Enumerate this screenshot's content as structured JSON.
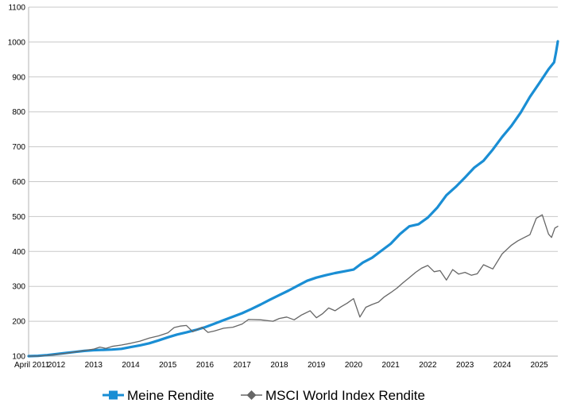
{
  "chart_data": {
    "type": "line",
    "title": "",
    "xlabel": "",
    "ylabel": "",
    "ylim": [
      100,
      1100
    ],
    "yticks": [
      100,
      200,
      300,
      400,
      500,
      600,
      700,
      800,
      900,
      1000,
      1100
    ],
    "xlim": [
      2011.25,
      2025.5
    ],
    "xtick_labels": [
      {
        "x": 2011.25,
        "label": "April 2011"
      },
      {
        "x": 2012.0,
        "label": "2012"
      },
      {
        "x": 2013.0,
        "label": "2013"
      },
      {
        "x": 2014.0,
        "label": "2014"
      },
      {
        "x": 2015.0,
        "label": "2015"
      },
      {
        "x": 2016.0,
        "label": "2016"
      },
      {
        "x": 2017.0,
        "label": "2017"
      },
      {
        "x": 2018.0,
        "label": "2018"
      },
      {
        "x": 2019.0,
        "label": "2019"
      },
      {
        "x": 2020.0,
        "label": "2020"
      },
      {
        "x": 2021.0,
        "label": "2021"
      },
      {
        "x": 2022.0,
        "label": "2022"
      },
      {
        "x": 2023.0,
        "label": "2023"
      },
      {
        "x": 2024.0,
        "label": "2024"
      },
      {
        "x": 2025.0,
        "label": "2025"
      }
    ],
    "grid": {
      "horizontal": true,
      "vertical": false
    },
    "legend": "bottom",
    "series": [
      {
        "name": "Meine Rendite",
        "color": "#1a8ed4",
        "marker": "square",
        "points": [
          [
            2011.25,
            100
          ],
          [
            2011.5,
            101
          ],
          [
            2011.75,
            103
          ],
          [
            2012.0,
            106
          ],
          [
            2012.25,
            109
          ],
          [
            2012.5,
            112
          ],
          [
            2012.75,
            115
          ],
          [
            2013.0,
            117
          ],
          [
            2013.25,
            118
          ],
          [
            2013.5,
            119
          ],
          [
            2013.75,
            121
          ],
          [
            2014.0,
            126
          ],
          [
            2014.25,
            131
          ],
          [
            2014.5,
            137
          ],
          [
            2014.75,
            145
          ],
          [
            2015.0,
            154
          ],
          [
            2015.25,
            162
          ],
          [
            2015.5,
            168
          ],
          [
            2015.75,
            175
          ],
          [
            2016.0,
            183
          ],
          [
            2016.25,
            193
          ],
          [
            2016.5,
            203
          ],
          [
            2016.75,
            213
          ],
          [
            2017.0,
            223
          ],
          [
            2017.25,
            235
          ],
          [
            2017.5,
            248
          ],
          [
            2017.75,
            262
          ],
          [
            2018.0,
            275
          ],
          [
            2018.25,
            288
          ],
          [
            2018.5,
            302
          ],
          [
            2018.75,
            316
          ],
          [
            2019.0,
            325
          ],
          [
            2019.25,
            332
          ],
          [
            2019.5,
            338
          ],
          [
            2019.75,
            343
          ],
          [
            2020.0,
            348
          ],
          [
            2020.25,
            368
          ],
          [
            2020.5,
            382
          ],
          [
            2020.75,
            402
          ],
          [
            2021.0,
            422
          ],
          [
            2021.25,
            450
          ],
          [
            2021.5,
            472
          ],
          [
            2021.75,
            478
          ],
          [
            2022.0,
            497
          ],
          [
            2022.25,
            525
          ],
          [
            2022.5,
            561
          ],
          [
            2022.75,
            585
          ],
          [
            2023.0,
            612
          ],
          [
            2023.25,
            640
          ],
          [
            2023.5,
            660
          ],
          [
            2023.75,
            692
          ],
          [
            2024.0,
            728
          ],
          [
            2024.25,
            760
          ],
          [
            2024.5,
            798
          ],
          [
            2024.75,
            843
          ],
          [
            2025.0,
            882
          ],
          [
            2025.25,
            922
          ],
          [
            2025.4,
            942
          ],
          [
            2025.45,
            970
          ],
          [
            2025.5,
            1002
          ]
        ]
      },
      {
        "name": "MSCI World Index Rendite",
        "color": "#666666",
        "marker": "diamond",
        "points": [
          [
            2011.25,
            100
          ],
          [
            2011.5,
            100
          ],
          [
            2011.75,
            102
          ],
          [
            2012.0,
            105
          ],
          [
            2012.25,
            108
          ],
          [
            2012.5,
            112
          ],
          [
            2012.75,
            116
          ],
          [
            2013.0,
            120
          ],
          [
            2013.17,
            126
          ],
          [
            2013.33,
            122
          ],
          [
            2013.5,
            128
          ],
          [
            2013.75,
            132
          ],
          [
            2014.0,
            137
          ],
          [
            2014.25,
            143
          ],
          [
            2014.5,
            152
          ],
          [
            2014.75,
            158
          ],
          [
            2015.0,
            167
          ],
          [
            2015.17,
            182
          ],
          [
            2015.33,
            186
          ],
          [
            2015.5,
            188
          ],
          [
            2015.67,
            170
          ],
          [
            2015.92,
            183
          ],
          [
            2016.08,
            168
          ],
          [
            2016.25,
            172
          ],
          [
            2016.5,
            180
          ],
          [
            2016.75,
            183
          ],
          [
            2017.0,
            192
          ],
          [
            2017.17,
            205
          ],
          [
            2017.5,
            204
          ],
          [
            2017.83,
            200
          ],
          [
            2018.0,
            208
          ],
          [
            2018.2,
            212
          ],
          [
            2018.4,
            204
          ],
          [
            2018.6,
            218
          ],
          [
            2018.83,
            230
          ],
          [
            2019.0,
            210
          ],
          [
            2019.17,
            222
          ],
          [
            2019.33,
            238
          ],
          [
            2019.5,
            230
          ],
          [
            2019.67,
            242
          ],
          [
            2019.83,
            252
          ],
          [
            2020.0,
            265
          ],
          [
            2020.17,
            212
          ],
          [
            2020.33,
            240
          ],
          [
            2020.5,
            248
          ],
          [
            2020.67,
            255
          ],
          [
            2020.83,
            270
          ],
          [
            2021.0,
            282
          ],
          [
            2021.17,
            295
          ],
          [
            2021.33,
            310
          ],
          [
            2021.5,
            325
          ],
          [
            2021.67,
            340
          ],
          [
            2021.83,
            352
          ],
          [
            2022.0,
            360
          ],
          [
            2022.17,
            342
          ],
          [
            2022.33,
            345
          ],
          [
            2022.5,
            318
          ],
          [
            2022.67,
            348
          ],
          [
            2022.83,
            335
          ],
          [
            2023.0,
            340
          ],
          [
            2023.17,
            332
          ],
          [
            2023.33,
            336
          ],
          [
            2023.5,
            362
          ],
          [
            2023.75,
            350
          ],
          [
            2024.0,
            393
          ],
          [
            2024.25,
            418
          ],
          [
            2024.42,
            430
          ],
          [
            2024.6,
            440
          ],
          [
            2024.75,
            448
          ],
          [
            2024.92,
            495
          ],
          [
            2025.08,
            505
          ],
          [
            2025.25,
            450
          ],
          [
            2025.33,
            440
          ],
          [
            2025.42,
            467
          ],
          [
            2025.5,
            472
          ]
        ]
      }
    ]
  }
}
